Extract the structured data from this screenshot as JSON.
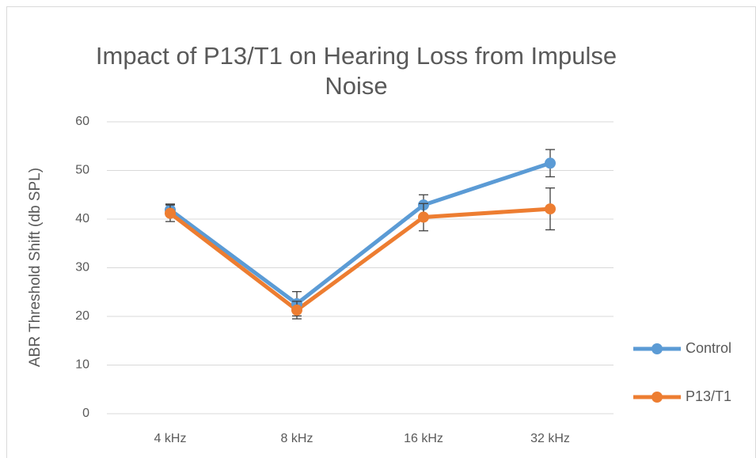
{
  "chart_data": {
    "type": "line",
    "title": "Impact of P13/T1 on Hearing Loss from Impulse Noise",
    "y_label": "ABR Threshold Shift (db SPL)",
    "categories": [
      "4 kHz",
      "8 kHz",
      "16 kHz",
      "32 kHz"
    ],
    "series": [
      {
        "name": "Control",
        "color": "#5b9bd5",
        "values": [
          41.9,
          22.6,
          42.9,
          51.5
        ],
        "errors": [
          1.2,
          2.5,
          2.1,
          2.8
        ]
      },
      {
        "name": "P13/T1",
        "color": "#ed7d31",
        "values": [
          41.2,
          21.3,
          40.4,
          42.1
        ],
        "errors": [
          1.7,
          1.8,
          2.8,
          4.3
        ]
      }
    ],
    "ylim": [
      0,
      60
    ],
    "yticks": [
      0,
      10,
      20,
      30,
      40,
      50,
      60
    ],
    "grid": true,
    "legend": "right"
  }
}
